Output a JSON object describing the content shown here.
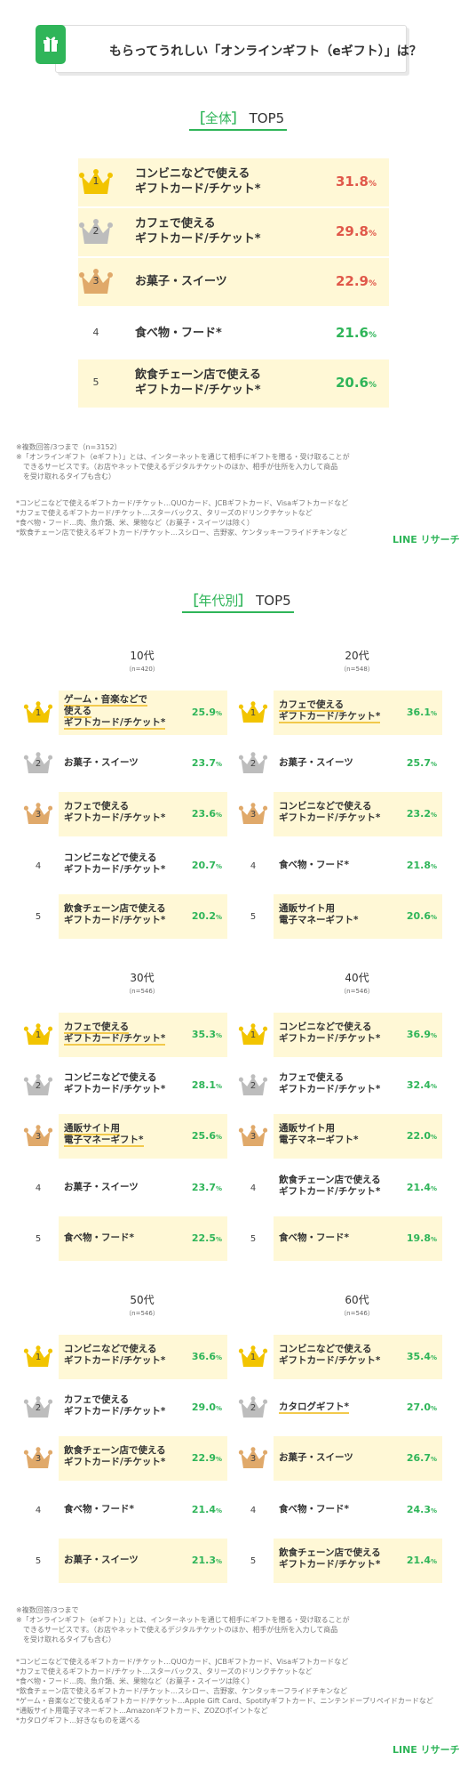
{
  "header": {
    "title": "もらってうれしい「オンラインギフト（eギフト）」は？",
    "icon": "gift-icon"
  },
  "colors": {
    "accent": "#2fb559",
    "red": "#e0584a",
    "highlight": "#fff8d6",
    "gold": "#f2c400",
    "silver": "#bdbdbd",
    "bronze": "#e0a96a"
  },
  "overall": {
    "title_open": "［",
    "title_word": "全体",
    "title_close": "］",
    "title_rest": " TOP5",
    "rows": [
      {
        "rank": "1",
        "label": "コンビニなどで使える\nギフトカード/チケット*",
        "value": "31.8",
        "unit": "%"
      },
      {
        "rank": "2",
        "label": "カフェで使える\nギフトカード/チケット*",
        "value": "29.8",
        "unit": "%"
      },
      {
        "rank": "3",
        "label": "お菓子・スイーツ",
        "value": "22.9",
        "unit": "%"
      },
      {
        "rank": "4",
        "label": "食べ物・フード*",
        "value": "21.6",
        "unit": "%"
      },
      {
        "rank": "5",
        "label": "飲食チェーン店で使える\nギフトカード/チケット*",
        "value": "20.6",
        "unit": "%"
      }
    ],
    "note1": "※複数回答/3つまで（n=3152）\n※「オンラインギフト（eギフト）」とは、インターネットを通じて相手にギフトを贈る・受け取ることが\n　できるサービスです。（お店やネットで使えるデジタルチケットのほか、相手が住所を入力して商品\n　を受け取れるタイプも含む）",
    "note2": "*コンビニなどで使えるギフトカード/チケット…QUOカード、JCBギフトカード、Visaギフトカードなど\n*カフェで使えるギフトカード/チケット…スターバックス、タリーズのドリンクチケットなど\n*食べ物・フード…肉、魚介類、米、果物など（お菓子・スイーツは除く）\n*飲食チェーン店で使えるギフトカード/チケット…スシロー、吉野家、ケンタッキーフライドチキンなど",
    "brand": "LINE リサーチ"
  },
  "by_age": {
    "title_open": "［",
    "title_word": "年代別",
    "title_close": "］",
    "title_rest": " TOP5",
    "groups": [
      {
        "age": "10代",
        "n": "（n=420）",
        "rows": [
          {
            "rank": "1",
            "label": "ゲーム・音楽などで\n使える\nギフトカード/チケット*",
            "value": "25.9",
            "ul": true
          },
          {
            "rank": "2",
            "label": "お菓子・スイーツ",
            "value": "23.7"
          },
          {
            "rank": "3",
            "label": "カフェで使える\nギフトカード/チケット*",
            "value": "23.6"
          },
          {
            "rank": "4",
            "label": "コンビニなどで使える\nギフトカード/チケット*",
            "value": "20.7"
          },
          {
            "rank": "5",
            "label": "飲食チェーン店で使える\nギフトカード/チケット*",
            "value": "20.2"
          }
        ]
      },
      {
        "age": "20代",
        "n": "（n=548）",
        "rows": [
          {
            "rank": "1",
            "label": "カフェで使える\nギフトカード/チケット*",
            "value": "36.1",
            "ul": true
          },
          {
            "rank": "2",
            "label": "お菓子・スイーツ",
            "value": "25.7"
          },
          {
            "rank": "3",
            "label": "コンビニなどで使える\nギフトカード/チケット*",
            "value": "23.2"
          },
          {
            "rank": "4",
            "label": "食べ物・フード*",
            "value": "21.8"
          },
          {
            "rank": "5",
            "label": "通販サイト用\n電子マネーギフト*",
            "value": "20.6"
          }
        ]
      },
      {
        "age": "30代",
        "n": "（n=546）",
        "rows": [
          {
            "rank": "1",
            "label": "カフェで使える\nギフトカード/チケット*",
            "value": "35.3",
            "ul": true
          },
          {
            "rank": "2",
            "label": "コンビニなどで使える\nギフトカード/チケット*",
            "value": "28.1"
          },
          {
            "rank": "3",
            "label": "通販サイト用\n電子マネーギフト*",
            "value": "25.6",
            "ul": true
          },
          {
            "rank": "4",
            "label": "お菓子・スイーツ",
            "value": "23.7"
          },
          {
            "rank": "5",
            "label": "食べ物・フード*",
            "value": "22.5"
          }
        ]
      },
      {
        "age": "40代",
        "n": "（n=546）",
        "rows": [
          {
            "rank": "1",
            "label": "コンビニなどで使える\nギフトカード/チケット*",
            "value": "36.9"
          },
          {
            "rank": "2",
            "label": "カフェで使える\nギフトカード/チケット*",
            "value": "32.4"
          },
          {
            "rank": "3",
            "label": "通販サイト用\n電子マネーギフト*",
            "value": "22.0"
          },
          {
            "rank": "4",
            "label": "飲食チェーン店で使える\nギフトカード/チケット*",
            "value": "21.4"
          },
          {
            "rank": "5",
            "label": "食べ物・フード*",
            "value": "19.8"
          }
        ]
      },
      {
        "age": "50代",
        "n": "（n=546）",
        "rows": [
          {
            "rank": "1",
            "label": "コンビニなどで使える\nギフトカード/チケット*",
            "value": "36.6"
          },
          {
            "rank": "2",
            "label": "カフェで使える\nギフトカード/チケット*",
            "value": "29.0"
          },
          {
            "rank": "3",
            "label": "飲食チェーン店で使える\nギフトカード/チケット*",
            "value": "22.9"
          },
          {
            "rank": "4",
            "label": "食べ物・フード*",
            "value": "21.4"
          },
          {
            "rank": "5",
            "label": "お菓子・スイーツ",
            "value": "21.3"
          }
        ]
      },
      {
        "age": "60代",
        "n": "（n=546）",
        "rows": [
          {
            "rank": "1",
            "label": "コンビニなどで使える\nギフトカード/チケット*",
            "value": "35.4"
          },
          {
            "rank": "2",
            "label": "カタログギフト*",
            "value": "27.0",
            "ul": true
          },
          {
            "rank": "3",
            "label": "お菓子・スイーツ",
            "value": "26.7"
          },
          {
            "rank": "4",
            "label": "食べ物・フード*",
            "value": "24.3"
          },
          {
            "rank": "5",
            "label": "飲食チェーン店で使える\nギフトカード/チケット*",
            "value": "21.4"
          }
        ]
      }
    ],
    "unit": "%",
    "note1": "※複数回答/3つまで\n※「オンラインギフト（eギフト）」とは、インターネットを通じて相手にギフトを贈る・受け取ることが\n　できるサービスです。（お店やネットで使えるデジタルチケットのほか、相手が住所を入力して商品\n　を受け取れるタイプも含む）",
    "note2": "*コンビニなどで使えるギフトカード/チケット…QUOカード、JCBギフトカード、Visaギフトカードなど\n*カフェで使えるギフトカード/チケット…スターバックス、タリーズのドリンクチケットなど\n*食べ物・フード…肉、魚介類、米、果物など（お菓子・スイーツは除く）\n*飲食チェーン店で使えるギフトカード/チケット…スシロー、吉野家、ケンタッキーフライドチキンなど\n*ゲーム・音楽などで使えるギフトカード/チケット…Apple Gift Card、Spotifyギフトカード、ニンテンドープリペイドカードなど\n*通販サイト用電子マネーギフト…Amazonギフトカード、ZOZOポイントなど\n*カタログギフト…好きなものを選べる",
    "brand": "LINE リサーチ"
  },
  "chart_data": [
    {
      "type": "table",
      "title": "全体 TOP5",
      "categories": [
        "コンビニなどで使えるギフトカード/チケット*",
        "カフェで使えるギフトカード/チケット*",
        "お菓子・スイーツ",
        "食べ物・フード*",
        "飲食チェーン店で使えるギフトカード/チケット*"
      ],
      "values": [
        31.8,
        29.8,
        22.9,
        21.6,
        20.6
      ]
    },
    {
      "type": "table",
      "title": "10代",
      "values": [
        25.9,
        23.7,
        23.6,
        20.7,
        20.2
      ]
    },
    {
      "type": "table",
      "title": "20代",
      "values": [
        36.1,
        25.7,
        23.2,
        21.8,
        20.6
      ]
    },
    {
      "type": "table",
      "title": "30代",
      "values": [
        35.3,
        28.1,
        25.6,
        23.7,
        22.5
      ]
    },
    {
      "type": "table",
      "title": "40代",
      "values": [
        36.9,
        32.4,
        22.0,
        21.4,
        19.8
      ]
    },
    {
      "type": "table",
      "title": "50代",
      "values": [
        36.6,
        29.0,
        22.9,
        21.4,
        21.3
      ]
    },
    {
      "type": "table",
      "title": "60代",
      "values": [
        35.4,
        27.0,
        26.7,
        24.3,
        21.4
      ]
    }
  ]
}
